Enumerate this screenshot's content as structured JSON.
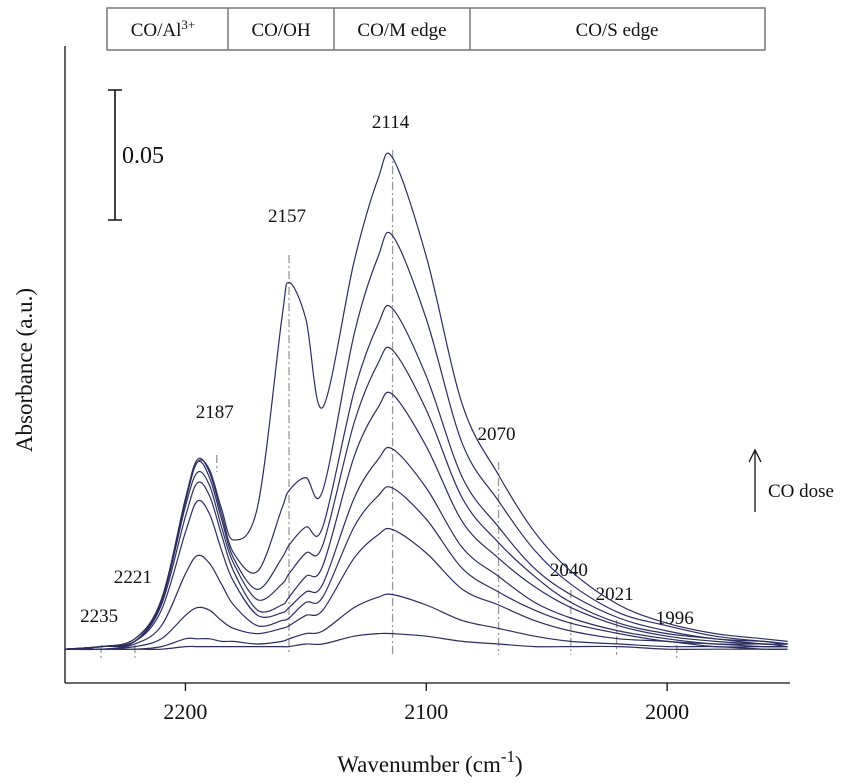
{
  "chart_data": {
    "type": "line",
    "bands": [
      "CO/Al",
      "CO/OH",
      "CO/M edge",
      "CO/S edge"
    ],
    "band_sup": "3+",
    "y_label": "Absorbance (a.u.)",
    "x_label": "Wavenumber (cm",
    "x_label_sup": "-1",
    "x_label_end": ")",
    "annotation": "CO dose",
    "scale_bar": 0.05,
    "peaks": [
      2235,
      2221,
      2187,
      2157,
      2114,
      2070,
      2040,
      2021,
      1996
    ],
    "xlim": [
      2250,
      1949
    ],
    "xticks": [
      2200,
      2100,
      2000
    ],
    "ylim": [
      -0.011,
      0.234
    ],
    "x": [
      2250,
      2235,
      2221,
      2210,
      2200,
      2195,
      2190,
      2185,
      2180,
      2170,
      2160,
      2157,
      2150,
      2143,
      2130,
      2120,
      2114,
      2100,
      2085,
      2070,
      2055,
      2040,
      2020,
      2000,
      1980,
      1960,
      1950
    ],
    "series": [
      {
        "color": "#2b2d5e",
        "values": [
          0.002,
          0.002,
          0.002,
          0.002,
          0.003,
          0.003,
          0.003,
          0.003,
          0.003,
          0.003,
          0.003,
          0.003,
          0.004,
          0.004,
          0.007,
          0.008,
          0.008,
          0.007,
          0.005,
          0.004,
          0.003,
          0.003,
          0.003,
          0.002,
          0.002,
          0.002,
          0.002
        ]
      },
      {
        "color": "#2b2d5e",
        "values": [
          0.002,
          0.002,
          0.002,
          0.003,
          0.006,
          0.006,
          0.006,
          0.005,
          0.005,
          0.004,
          0.005,
          0.006,
          0.008,
          0.009,
          0.018,
          0.022,
          0.023,
          0.019,
          0.013,
          0.01,
          0.007,
          0.005,
          0.004,
          0.003,
          0.003,
          0.002,
          0.002
        ]
      },
      {
        "color": "#2b2d5e",
        "values": [
          0.002,
          0.002,
          0.003,
          0.006,
          0.015,
          0.018,
          0.017,
          0.013,
          0.01,
          0.008,
          0.01,
          0.011,
          0.015,
          0.017,
          0.037,
          0.046,
          0.048,
          0.039,
          0.025,
          0.019,
          0.013,
          0.009,
          0.006,
          0.005,
          0.003,
          0.003,
          0.003
        ]
      },
      {
        "color": "#2b2d5e",
        "values": [
          0.002,
          0.002,
          0.004,
          0.011,
          0.031,
          0.038,
          0.035,
          0.027,
          0.019,
          0.011,
          0.013,
          0.014,
          0.02,
          0.022,
          0.049,
          0.061,
          0.064,
          0.052,
          0.033,
          0.024,
          0.017,
          0.012,
          0.008,
          0.005,
          0.004,
          0.003,
          0.003
        ]
      },
      {
        "color": "#2b2d5e",
        "values": [
          0.002,
          0.003,
          0.005,
          0.017,
          0.047,
          0.059,
          0.054,
          0.04,
          0.028,
          0.015,
          0.016,
          0.018,
          0.024,
          0.027,
          0.06,
          0.075,
          0.079,
          0.064,
          0.041,
          0.03,
          0.02,
          0.014,
          0.009,
          0.006,
          0.004,
          0.004,
          0.003
        ]
      },
      {
        "color": "#2b2d5e",
        "values": [
          0.002,
          0.003,
          0.005,
          0.019,
          0.053,
          0.066,
          0.061,
          0.046,
          0.032,
          0.017,
          0.019,
          0.022,
          0.03,
          0.034,
          0.076,
          0.095,
          0.1,
          0.08,
          0.051,
          0.037,
          0.026,
          0.018,
          0.011,
          0.007,
          0.005,
          0.004,
          0.004
        ]
      },
      {
        "color": "#2b2d5e",
        "values": [
          0.002,
          0.003,
          0.005,
          0.02,
          0.057,
          0.07,
          0.065,
          0.049,
          0.035,
          0.021,
          0.027,
          0.031,
          0.039,
          0.042,
          0.089,
          0.112,
          0.117,
          0.094,
          0.06,
          0.043,
          0.03,
          0.02,
          0.012,
          0.008,
          0.006,
          0.004,
          0.004
        ]
      },
      {
        "color": "#2b2d5e",
        "values": [
          0.002,
          0.003,
          0.006,
          0.021,
          0.059,
          0.074,
          0.068,
          0.052,
          0.037,
          0.025,
          0.037,
          0.042,
          0.049,
          0.049,
          0.101,
          0.127,
          0.133,
          0.107,
          0.068,
          0.049,
          0.033,
          0.023,
          0.014,
          0.009,
          0.006,
          0.005,
          0.004
        ]
      },
      {
        "color": "#2b2d5e",
        "values": [
          0.002,
          0.003,
          0.006,
          0.021,
          0.06,
          0.075,
          0.07,
          0.054,
          0.039,
          0.032,
          0.056,
          0.063,
          0.068,
          0.063,
          0.123,
          0.153,
          0.161,
          0.129,
          0.081,
          0.059,
          0.04,
          0.027,
          0.016,
          0.011,
          0.007,
          0.005,
          0.004
        ]
      },
      {
        "color": "#2b2d5e",
        "values": [
          0.002,
          0.003,
          0.005,
          0.021,
          0.059,
          0.074,
          0.071,
          0.056,
          0.044,
          0.057,
          0.129,
          0.143,
          0.129,
          0.095,
          0.151,
          0.183,
          0.191,
          0.153,
          0.096,
          0.069,
          0.047,
          0.032,
          0.019,
          0.012,
          0.008,
          0.006,
          0.005
        ]
      }
    ]
  }
}
